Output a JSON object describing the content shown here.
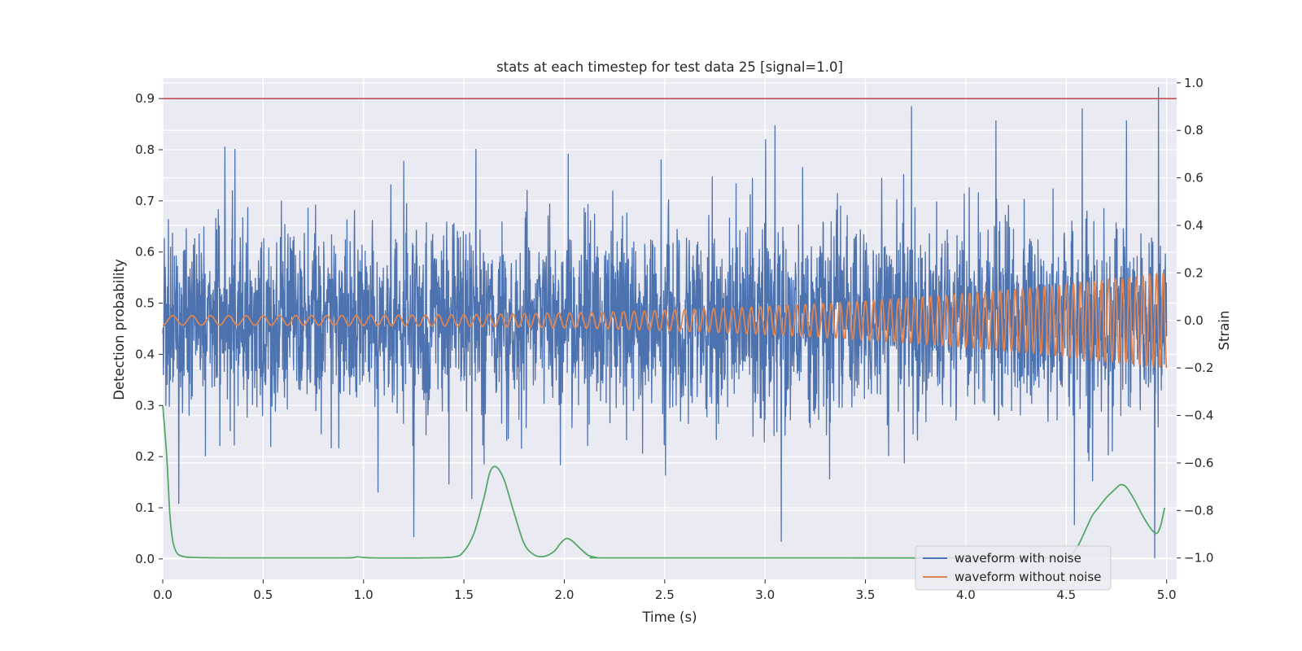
{
  "chart_data": {
    "type": "line",
    "title": "stats at each timestep for test data 25 [signal=1.0]",
    "xlabel": "Time (s)",
    "ylabel_left": "Detection probability",
    "ylabel_right": "Strain",
    "xlim": [
      0.0,
      5.05
    ],
    "ylim_left": [
      -0.04,
      0.94
    ],
    "ylim_right": [
      -1.09,
      1.02
    ],
    "x_ticks": [
      "0.0",
      "0.5",
      "1.0",
      "1.5",
      "2.0",
      "2.5",
      "3.0",
      "3.5",
      "4.0",
      "4.5",
      "5.0"
    ],
    "y_left_ticks": [
      "0.0",
      "0.1",
      "0.2",
      "0.3",
      "0.4",
      "0.5",
      "0.6",
      "0.7",
      "0.8",
      "0.9"
    ],
    "y_right_ticks": [
      "−1.0",
      "−0.8",
      "−0.6",
      "−0.4",
      "−0.2",
      "0.0",
      "0.2",
      "0.4",
      "0.6",
      "0.8",
      "1.0"
    ],
    "grid": true,
    "threshold": {
      "axis": "left",
      "value": 0.9,
      "color": "#c44e52"
    },
    "colors": {
      "noise": "#4c72b0",
      "clean": "#dd8452",
      "prob": "#55a868",
      "background": "#eaeaf2",
      "grid": "#ffffff"
    },
    "series": [
      {
        "name": "waveform with noise",
        "axis": "right",
        "kind": "noise",
        "std": 0.2,
        "range": [
          -1.0,
          0.98
        ],
        "peaks": [
          [
            0.31,
            0.73
          ],
          [
            0.36,
            0.72
          ],
          [
            1.2,
            0.67
          ],
          [
            1.56,
            0.72
          ],
          [
            2.02,
            0.7
          ],
          [
            3.05,
            0.82
          ],
          [
            3.73,
            0.9
          ],
          [
            4.15,
            0.84
          ],
          [
            4.58,
            0.89
          ],
          [
            4.8,
            0.84
          ],
          [
            4.96,
            0.98
          ]
        ],
        "dips": [
          [
            0.08,
            -0.77
          ],
          [
            1.25,
            -0.91
          ],
          [
            1.54,
            -0.75
          ],
          [
            3.08,
            -0.93
          ],
          [
            4.54,
            -0.86
          ],
          [
            4.94,
            -1.0
          ]
        ]
      },
      {
        "name": "waveform without noise",
        "axis": "right",
        "kind": "chirp",
        "amplitude_start": 0.02,
        "amplitude_end": 0.2,
        "frequency_start_hz": 10,
        "frequency_end_hz": 30
      },
      {
        "axis": "left",
        "kind": "probability",
        "x": [
          0.0,
          0.02,
          0.035,
          0.05,
          0.07,
          0.1,
          0.15,
          0.3,
          0.5,
          0.9,
          0.95,
          0.97,
          1.0,
          1.05,
          1.3,
          1.45,
          1.5,
          1.55,
          1.6,
          1.63,
          1.66,
          1.7,
          1.75,
          1.8,
          1.85,
          1.9,
          1.95,
          1.98,
          2.01,
          2.04,
          2.08,
          2.12,
          2.16,
          2.2,
          3.0,
          4.4,
          4.5,
          4.55,
          4.6,
          4.63,
          4.66,
          4.7,
          4.74,
          4.77,
          4.8,
          4.84,
          4.88,
          4.92,
          4.95,
          4.97,
          4.99
        ],
        "y": [
          0.3,
          0.2,
          0.09,
          0.035,
          0.012,
          0.005,
          0.003,
          0.002,
          0.002,
          0.002,
          0.003,
          0.004,
          0.003,
          0.002,
          0.002,
          0.004,
          0.015,
          0.05,
          0.12,
          0.17,
          0.18,
          0.155,
          0.09,
          0.03,
          0.008,
          0.005,
          0.015,
          0.03,
          0.04,
          0.035,
          0.02,
          0.007,
          0.003,
          0.002,
          0.002,
          0.002,
          0.005,
          0.02,
          0.06,
          0.085,
          0.1,
          0.12,
          0.135,
          0.145,
          0.14,
          0.115,
          0.085,
          0.06,
          0.05,
          0.065,
          0.1
        ]
      }
    ],
    "legend": {
      "position": "lower right",
      "entries": [
        "waveform with noise",
        "waveform without noise"
      ]
    }
  }
}
